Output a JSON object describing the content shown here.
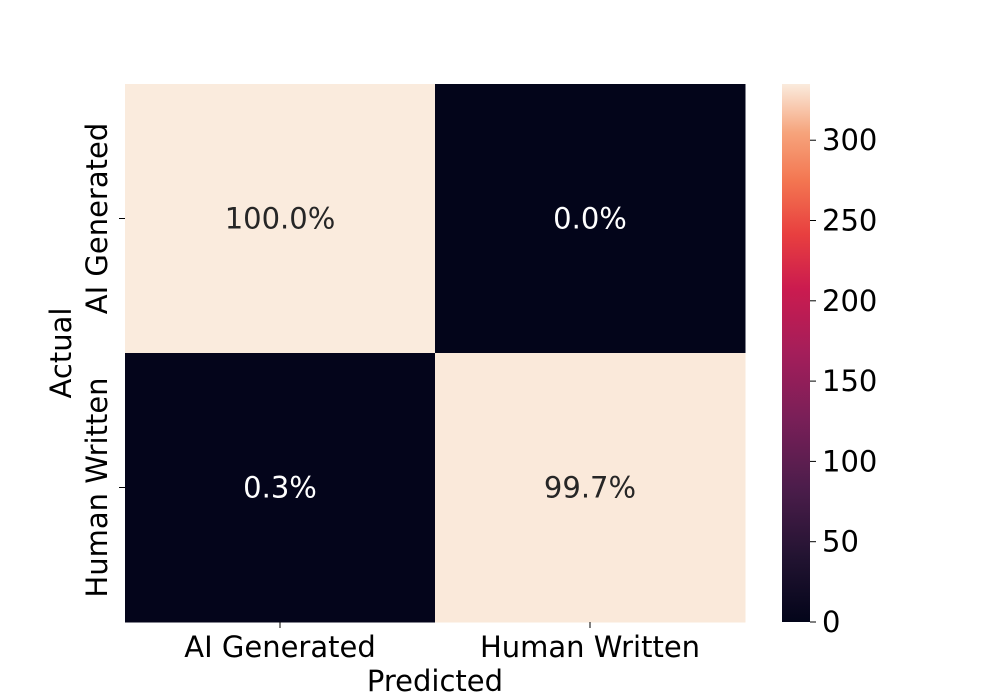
{
  "chart_data": {
    "type": "heatmap",
    "title": "",
    "xlabel": "Predicted",
    "ylabel": "Actual",
    "x_categories": [
      "AI Generated",
      "Human Written"
    ],
    "y_categories": [
      "AI Generated",
      "Human Written"
    ],
    "cells": [
      {
        "row": 0,
        "col": 0,
        "count": 335,
        "label": "100.0%"
      },
      {
        "row": 0,
        "col": 1,
        "count": 0,
        "label": "0.0%"
      },
      {
        "row": 1,
        "col": 0,
        "count": 1,
        "label": "0.3%"
      },
      {
        "row": 1,
        "col": 1,
        "count": 334,
        "label": "99.7%"
      }
    ],
    "colorbar": {
      "min": 0,
      "max": 335,
      "ticks": [
        0,
        50,
        100,
        150,
        200,
        250,
        300
      ],
      "colormap": "rocket"
    },
    "grid": false,
    "legend": "none"
  }
}
